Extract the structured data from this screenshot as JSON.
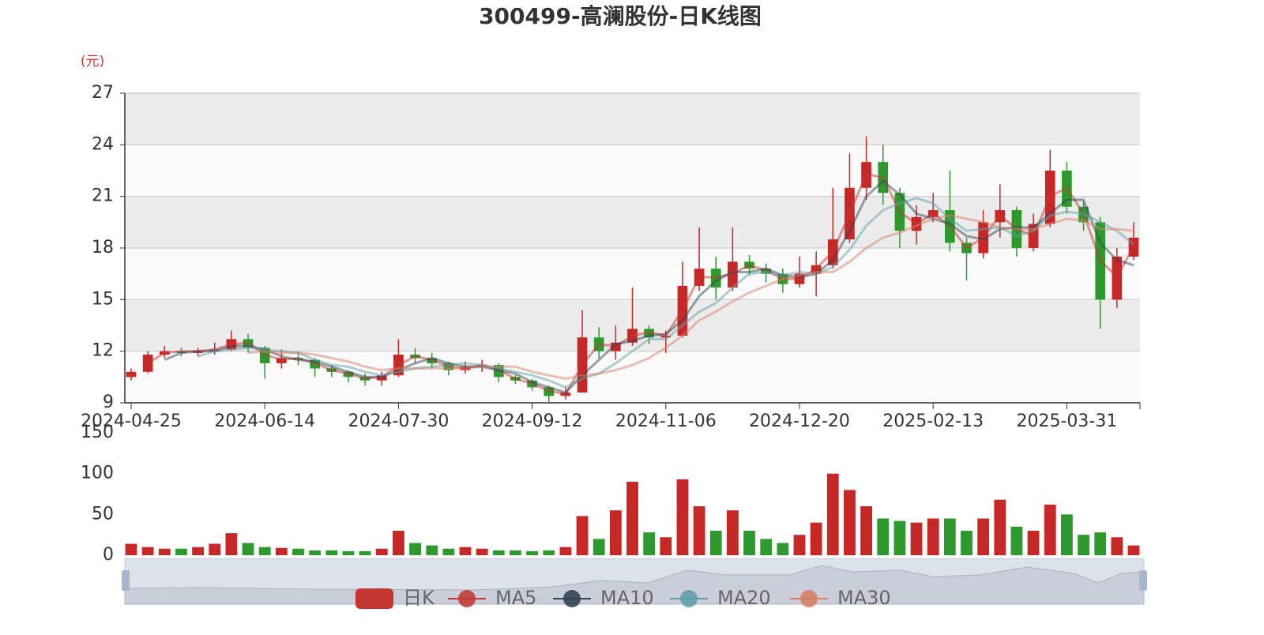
{
  "chart_data": [
    {
      "type": "candlestick",
      "title": "300499-高澜股份-日K线图",
      "ylabel": "(元)",
      "categories": [
        "2024-04-25",
        null,
        null,
        null,
        null,
        null,
        null,
        null,
        "2024-06-14",
        null,
        null,
        null,
        null,
        null,
        null,
        null,
        "2024-07-30",
        null,
        null,
        null,
        null,
        null,
        null,
        null,
        "2024-09-12",
        null,
        null,
        null,
        null,
        null,
        null,
        null,
        "2024-11-06",
        null,
        null,
        null,
        null,
        null,
        null,
        null,
        "2024-12-20",
        null,
        null,
        null,
        null,
        null,
        null,
        null,
        "2025-02-13",
        null,
        null,
        null,
        null,
        null,
        null,
        null,
        "2025-03-31",
        null,
        null,
        null,
        null
      ],
      "ylim": [
        9,
        27
      ],
      "yticks": [
        9,
        12,
        15,
        18,
        21,
        24,
        27
      ],
      "grid": true,
      "up_color": "#c62828",
      "down_color": "#2e9a2e",
      "series": [
        {
          "name": "日K",
          "color": "#c23531",
          "values": [
            [
              10.5,
              10.8,
              10.3,
              11.0
            ],
            [
              10.8,
              11.8,
              10.7,
              12.0
            ],
            [
              11.8,
              12.0,
              11.6,
              12.3
            ],
            [
              12.0,
              11.9,
              11.7,
              12.2
            ],
            [
              11.9,
              12.0,
              11.7,
              12.2
            ],
            [
              12.0,
              12.1,
              11.8,
              12.5
            ],
            [
              12.1,
              12.7,
              12.0,
              13.2
            ],
            [
              12.7,
              12.2,
              11.9,
              13.0
            ],
            [
              12.2,
              11.3,
              10.4,
              12.3
            ],
            [
              11.3,
              11.6,
              11.0,
              12.1
            ],
            [
              11.6,
              11.5,
              11.2,
              12.0
            ],
            [
              11.5,
              11.0,
              10.5,
              11.6
            ],
            [
              11.0,
              10.8,
              10.5,
              11.2
            ],
            [
              10.8,
              10.5,
              10.2,
              10.9
            ],
            [
              10.5,
              10.3,
              10.0,
              10.7
            ],
            [
              10.3,
              10.6,
              10.0,
              10.8
            ],
            [
              10.6,
              11.8,
              10.5,
              12.7
            ],
            [
              11.8,
              11.6,
              11.3,
              12.2
            ],
            [
              11.6,
              11.3,
              11.0,
              11.9
            ],
            [
              11.3,
              10.9,
              10.6,
              11.4
            ],
            [
              10.9,
              11.1,
              10.7,
              11.4
            ],
            [
              11.1,
              11.2,
              10.8,
              11.5
            ],
            [
              11.2,
              10.5,
              10.2,
              11.3
            ],
            [
              10.5,
              10.3,
              10.1,
              10.6
            ],
            [
              10.3,
              9.9,
              9.7,
              10.4
            ],
            [
              9.9,
              9.4,
              9.0,
              10.0
            ],
            [
              9.4,
              9.6,
              9.2,
              9.9
            ],
            [
              9.6,
              12.8,
              9.6,
              14.4
            ],
            [
              12.8,
              12.0,
              11.6,
              13.4
            ],
            [
              12.0,
              12.5,
              11.5,
              13.5
            ],
            [
              12.5,
              13.3,
              12.3,
              15.7
            ],
            [
              13.3,
              12.8,
              12.4,
              13.5
            ],
            [
              12.8,
              12.9,
              11.9,
              13.2
            ],
            [
              12.9,
              15.8,
              12.8,
              17.2
            ],
            [
              15.8,
              16.8,
              15.5,
              19.2
            ],
            [
              16.8,
              15.7,
              15.0,
              17.5
            ],
            [
              15.7,
              17.2,
              15.5,
              19.2
            ],
            [
              17.2,
              16.8,
              16.4,
              17.6
            ],
            [
              16.8,
              16.5,
              16.0,
              17.1
            ],
            [
              16.5,
              15.9,
              15.4,
              16.8
            ],
            [
              15.9,
              16.5,
              15.7,
              17.5
            ],
            [
              16.5,
              17.0,
              15.2,
              17.8
            ],
            [
              17.0,
              18.5,
              16.8,
              21.5
            ],
            [
              18.5,
              21.5,
              18.3,
              23.5
            ],
            [
              21.5,
              23.0,
              20.8,
              24.5
            ],
            [
              23.0,
              21.2,
              20.5,
              24.0
            ],
            [
              21.2,
              19.0,
              18.0,
              21.5
            ],
            [
              19.0,
              19.8,
              18.2,
              20.5
            ],
            [
              19.8,
              20.2,
              19.5,
              21.2
            ],
            [
              20.2,
              18.3,
              17.8,
              22.5
            ],
            [
              18.3,
              17.7,
              16.1,
              18.6
            ],
            [
              17.7,
              19.5,
              17.4,
              20.2
            ],
            [
              19.5,
              20.2,
              18.6,
              21.7
            ],
            [
              20.2,
              18.0,
              17.5,
              20.4
            ],
            [
              18.0,
              19.4,
              17.8,
              20.0
            ],
            [
              19.4,
              22.5,
              19.2,
              23.7
            ],
            [
              22.5,
              20.4,
              20.0,
              23.0
            ],
            [
              20.4,
              19.5,
              19.0,
              20.7
            ],
            [
              19.5,
              15.0,
              13.3,
              19.8
            ],
            [
              15.0,
              17.5,
              14.5,
              18.0
            ],
            [
              17.5,
              18.6,
              17.3,
              19.5
            ]
          ]
        },
        {
          "name": "MA5",
          "color": "#c23531",
          "values": [
            null,
            11.3,
            11.9,
            12.0,
            12.0,
            12.1,
            12.4,
            12.5,
            11.8,
            11.5,
            11.6,
            11.3,
            10.9,
            10.7,
            10.4,
            10.5,
            11.2,
            11.7,
            11.5,
            11.1,
            11.0,
            11.2,
            10.9,
            10.4,
            10.1,
            9.7,
            9.5,
            11.2,
            12.4,
            12.3,
            12.9,
            13.1,
            12.9,
            14.4,
            16.3,
            16.3,
            16.5,
            17.0,
            16.7,
            16.2,
            16.2,
            16.8,
            17.8,
            20.0,
            22.3,
            22.1,
            20.1,
            19.4,
            20.0,
            19.3,
            18.0,
            18.6,
            19.9,
            19.1,
            18.7,
            21.0,
            21.5,
            20.0,
            17.3,
            16.3,
            18.1
          ]
        },
        {
          "name": "MA10",
          "color": "#2f4554",
          "values": [
            null,
            null,
            11.5,
            11.9,
            12.0,
            12.0,
            12.3,
            12.3,
            12.1,
            11.7,
            11.5,
            11.4,
            11.1,
            10.8,
            10.5,
            10.5,
            10.9,
            11.3,
            11.6,
            11.3,
            11.1,
            11.1,
            10.9,
            10.7,
            10.2,
            9.9,
            9.6,
            10.6,
            11.5,
            12.4,
            12.6,
            12.9,
            13.0,
            13.8,
            15.2,
            16.1,
            16.6,
            16.6,
            16.8,
            16.4,
            16.3,
            16.5,
            17.3,
            19.0,
            21.0,
            21.9,
            21.1,
            20.0,
            19.7,
            19.4,
            18.7,
            18.5,
            19.1,
            19.2,
            19.2,
            20.0,
            20.8,
            20.8,
            18.3,
            17.3,
            17.0
          ]
        },
        {
          "name": "MA20",
          "color": "#61a0a8",
          "values": [
            null,
            null,
            null,
            null,
            11.7,
            12.0,
            12.1,
            12.2,
            12.1,
            12.0,
            11.9,
            11.5,
            11.2,
            11.1,
            10.8,
            10.6,
            10.8,
            11.0,
            11.1,
            11.2,
            11.3,
            11.2,
            11.0,
            10.8,
            10.6,
            10.3,
            9.9,
            10.4,
            10.7,
            11.3,
            12.0,
            12.7,
            12.7,
            13.5,
            14.3,
            14.8,
            15.7,
            16.5,
            16.6,
            16.4,
            16.6,
            16.5,
            16.9,
            17.9,
            19.3,
            20.2,
            20.6,
            20.9,
            20.6,
            19.7,
            19.0,
            19.1,
            19.2,
            18.7,
            19.0,
            19.9,
            20.1,
            20.0,
            19.5,
            19.0,
            18.2
          ]
        },
        {
          "name": "MA30",
          "color": "#d48265",
          "values": [
            null,
            null,
            null,
            null,
            null,
            null,
            null,
            11.9,
            12.0,
            11.9,
            11.9,
            11.8,
            11.6,
            11.4,
            11.1,
            10.9,
            11.0,
            11.0,
            11.0,
            11.0,
            11.0,
            11.1,
            11.1,
            11.1,
            10.8,
            10.6,
            10.4,
            10.6,
            10.7,
            10.9,
            11.2,
            11.6,
            12.2,
            12.9,
            13.8,
            14.3,
            14.9,
            15.4,
            15.8,
            16.2,
            16.4,
            16.6,
            16.6,
            17.2,
            18.0,
            18.6,
            18.9,
            19.3,
            19.7,
            19.9,
            19.7,
            19.5,
            19.2,
            19.1,
            19.1,
            19.4,
            19.7,
            19.6,
            19.1,
            19.1,
            19.0
          ]
        }
      ]
    },
    {
      "type": "bar",
      "ylim": [
        0,
        150
      ],
      "yticks": [
        0,
        50,
        100,
        150
      ],
      "values": [
        14,
        10,
        8,
        8,
        10,
        14,
        27,
        15,
        10,
        9,
        8,
        6,
        6,
        5,
        5,
        8,
        30,
        15,
        12,
        8,
        10,
        8,
        6,
        6,
        5,
        6,
        10,
        48,
        20,
        55,
        90,
        28,
        22,
        93,
        60,
        30,
        55,
        30,
        20,
        15,
        25,
        40,
        100,
        80,
        60,
        45,
        42,
        40,
        45,
        45,
        30,
        45,
        68,
        35,
        30,
        62,
        50,
        25,
        28,
        22,
        12
      ]
    }
  ]
}
